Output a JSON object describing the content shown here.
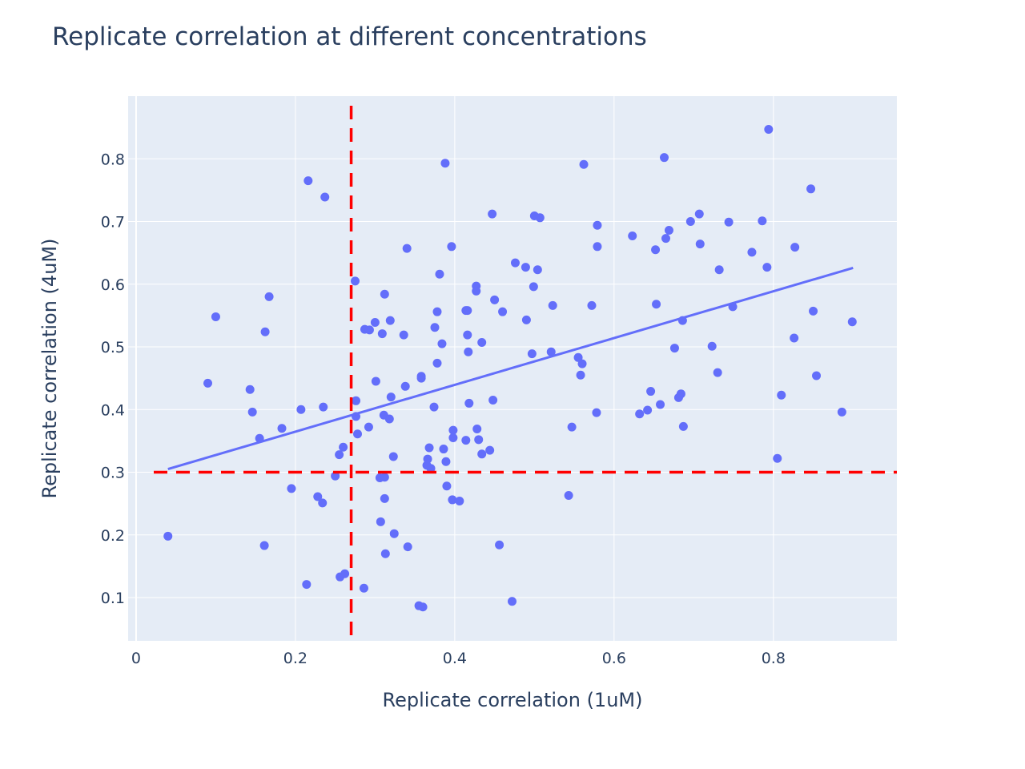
{
  "chart_data": {
    "type": "scatter",
    "title": "Replicate correlation at different concentrations",
    "xlabel": "Replicate correlation (1uM)",
    "ylabel": "Replicate correlation (4uM)",
    "xlim": [
      -0.01,
      0.955
    ],
    "ylim": [
      0.031,
      0.9
    ],
    "x_ticks": [
      0,
      0.2,
      0.4,
      0.6,
      0.8
    ],
    "x_tick_labels": [
      "0",
      "0.2",
      "0.4",
      "0.6",
      "0.8"
    ],
    "y_ticks": [
      0.1,
      0.2,
      0.3,
      0.4,
      0.5,
      0.6,
      0.7,
      0.8
    ],
    "y_tick_labels": [
      "0.1",
      "0.2",
      "0.3",
      "0.4",
      "0.5",
      "0.6",
      "0.7",
      "0.8"
    ],
    "grid": true,
    "colors": {
      "points": "#636efa",
      "trendline": "#636efa",
      "threshold": "#ff0000",
      "plot_bg": "#e5ecf6",
      "grid": "#ffffff",
      "text": "#2a3f5f"
    },
    "trendline": {
      "x": [
        0.04,
        0.9
      ],
      "y": [
        0.305,
        0.626
      ]
    },
    "thresholds": {
      "x": 0.27,
      "y": 0.3
    },
    "points": [
      [
        0.04,
        0.198
      ],
      [
        0.09,
        0.442
      ],
      [
        0.1,
        0.548
      ],
      [
        0.143,
        0.432
      ],
      [
        0.146,
        0.396
      ],
      [
        0.155,
        0.354
      ],
      [
        0.161,
        0.183
      ],
      [
        0.162,
        0.524
      ],
      [
        0.167,
        0.58
      ],
      [
        0.183,
        0.37
      ],
      [
        0.195,
        0.274
      ],
      [
        0.207,
        0.4
      ],
      [
        0.214,
        0.121
      ],
      [
        0.216,
        0.765
      ],
      [
        0.228,
        0.261
      ],
      [
        0.234,
        0.251
      ],
      [
        0.235,
        0.404
      ],
      [
        0.237,
        0.739
      ],
      [
        0.25,
        0.294
      ],
      [
        0.255,
        0.328
      ],
      [
        0.256,
        0.133
      ],
      [
        0.26,
        0.34
      ],
      [
        0.262,
        0.138
      ],
      [
        0.275,
        0.605
      ],
      [
        0.276,
        0.414
      ],
      [
        0.276,
        0.389
      ],
      [
        0.278,
        0.361
      ],
      [
        0.286,
        0.115
      ],
      [
        0.287,
        0.528
      ],
      [
        0.292,
        0.372
      ],
      [
        0.293,
        0.527
      ],
      [
        0.3,
        0.539
      ],
      [
        0.301,
        0.445
      ],
      [
        0.306,
        0.291
      ],
      [
        0.307,
        0.221
      ],
      [
        0.309,
        0.521
      ],
      [
        0.311,
        0.391
      ],
      [
        0.312,
        0.584
      ],
      [
        0.312,
        0.258
      ],
      [
        0.312,
        0.292
      ],
      [
        0.313,
        0.17
      ],
      [
        0.318,
        0.385
      ],
      [
        0.319,
        0.542
      ],
      [
        0.32,
        0.42
      ],
      [
        0.323,
        0.325
      ],
      [
        0.324,
        0.202
      ],
      [
        0.336,
        0.519
      ],
      [
        0.338,
        0.437
      ],
      [
        0.34,
        0.657
      ],
      [
        0.341,
        0.181
      ],
      [
        0.355,
        0.087
      ],
      [
        0.358,
        0.45
      ],
      [
        0.358,
        0.453
      ],
      [
        0.36,
        0.085
      ],
      [
        0.365,
        0.311
      ],
      [
        0.366,
        0.321
      ],
      [
        0.368,
        0.339
      ],
      [
        0.37,
        0.306
      ],
      [
        0.374,
        0.404
      ],
      [
        0.375,
        0.531
      ],
      [
        0.378,
        0.474
      ],
      [
        0.378,
        0.556
      ],
      [
        0.381,
        0.616
      ],
      [
        0.384,
        0.505
      ],
      [
        0.386,
        0.337
      ],
      [
        0.388,
        0.793
      ],
      [
        0.389,
        0.317
      ],
      [
        0.39,
        0.278
      ],
      [
        0.396,
        0.66
      ],
      [
        0.397,
        0.256
      ],
      [
        0.398,
        0.367
      ],
      [
        0.398,
        0.355
      ],
      [
        0.406,
        0.254
      ],
      [
        0.414,
        0.558
      ],
      [
        0.414,
        0.351
      ],
      [
        0.416,
        0.558
      ],
      [
        0.416,
        0.519
      ],
      [
        0.417,
        0.492
      ],
      [
        0.418,
        0.41
      ],
      [
        0.427,
        0.597
      ],
      [
        0.427,
        0.589
      ],
      [
        0.428,
        0.369
      ],
      [
        0.43,
        0.352
      ],
      [
        0.434,
        0.507
      ],
      [
        0.434,
        0.329
      ],
      [
        0.444,
        0.335
      ],
      [
        0.447,
        0.712
      ],
      [
        0.448,
        0.415
      ],
      [
        0.45,
        0.575
      ],
      [
        0.456,
        0.184
      ],
      [
        0.46,
        0.556
      ],
      [
        0.472,
        0.094
      ],
      [
        0.476,
        0.634
      ],
      [
        0.489,
        0.627
      ],
      [
        0.49,
        0.543
      ],
      [
        0.497,
        0.489
      ],
      [
        0.499,
        0.596
      ],
      [
        0.5,
        0.709
      ],
      [
        0.504,
        0.623
      ],
      [
        0.507,
        0.706
      ],
      [
        0.521,
        0.492
      ],
      [
        0.523,
        0.566
      ],
      [
        0.543,
        0.263
      ],
      [
        0.547,
        0.372
      ],
      [
        0.555,
        0.483
      ],
      [
        0.558,
        0.455
      ],
      [
        0.56,
        0.473
      ],
      [
        0.562,
        0.791
      ],
      [
        0.572,
        0.566
      ],
      [
        0.578,
        0.395
      ],
      [
        0.579,
        0.694
      ],
      [
        0.579,
        0.66
      ],
      [
        0.623,
        0.677
      ],
      [
        0.632,
        0.393
      ],
      [
        0.642,
        0.399
      ],
      [
        0.646,
        0.429
      ],
      [
        0.652,
        0.655
      ],
      [
        0.653,
        0.568
      ],
      [
        0.658,
        0.408
      ],
      [
        0.663,
        0.802
      ],
      [
        0.665,
        0.673
      ],
      [
        0.669,
        0.686
      ],
      [
        0.676,
        0.498
      ],
      [
        0.681,
        0.419
      ],
      [
        0.684,
        0.425
      ],
      [
        0.686,
        0.542
      ],
      [
        0.687,
        0.373
      ],
      [
        0.696,
        0.7
      ],
      [
        0.707,
        0.712
      ],
      [
        0.708,
        0.664
      ],
      [
        0.723,
        0.501
      ],
      [
        0.73,
        0.459
      ],
      [
        0.732,
        0.623
      ],
      [
        0.744,
        0.699
      ],
      [
        0.749,
        0.564
      ],
      [
        0.773,
        0.651
      ],
      [
        0.786,
        0.701
      ],
      [
        0.792,
        0.627
      ],
      [
        0.794,
        0.847
      ],
      [
        0.805,
        0.322
      ],
      [
        0.81,
        0.423
      ],
      [
        0.826,
        0.514
      ],
      [
        0.827,
        0.659
      ],
      [
        0.847,
        0.752
      ],
      [
        0.85,
        0.557
      ],
      [
        0.854,
        0.454
      ],
      [
        0.886,
        0.396
      ],
      [
        0.899,
        0.54
      ]
    ]
  }
}
